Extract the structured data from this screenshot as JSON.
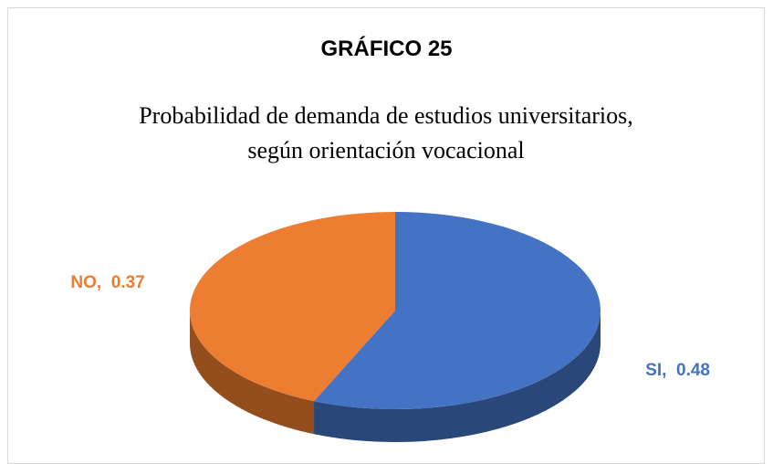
{
  "chart_data": {
    "type": "pie",
    "title": "GRÁFICO 25",
    "subtitle": "Probabilidad de demanda de estudios universitarios, según orientación vocacional",
    "categories": [
      "NO",
      "SI"
    ],
    "values": [
      0.37,
      0.48
    ],
    "value_labels": [
      "NO,  0.37",
      "SI,  0.48"
    ],
    "colors": [
      "#ed7d31",
      "#4472c4"
    ]
  }
}
